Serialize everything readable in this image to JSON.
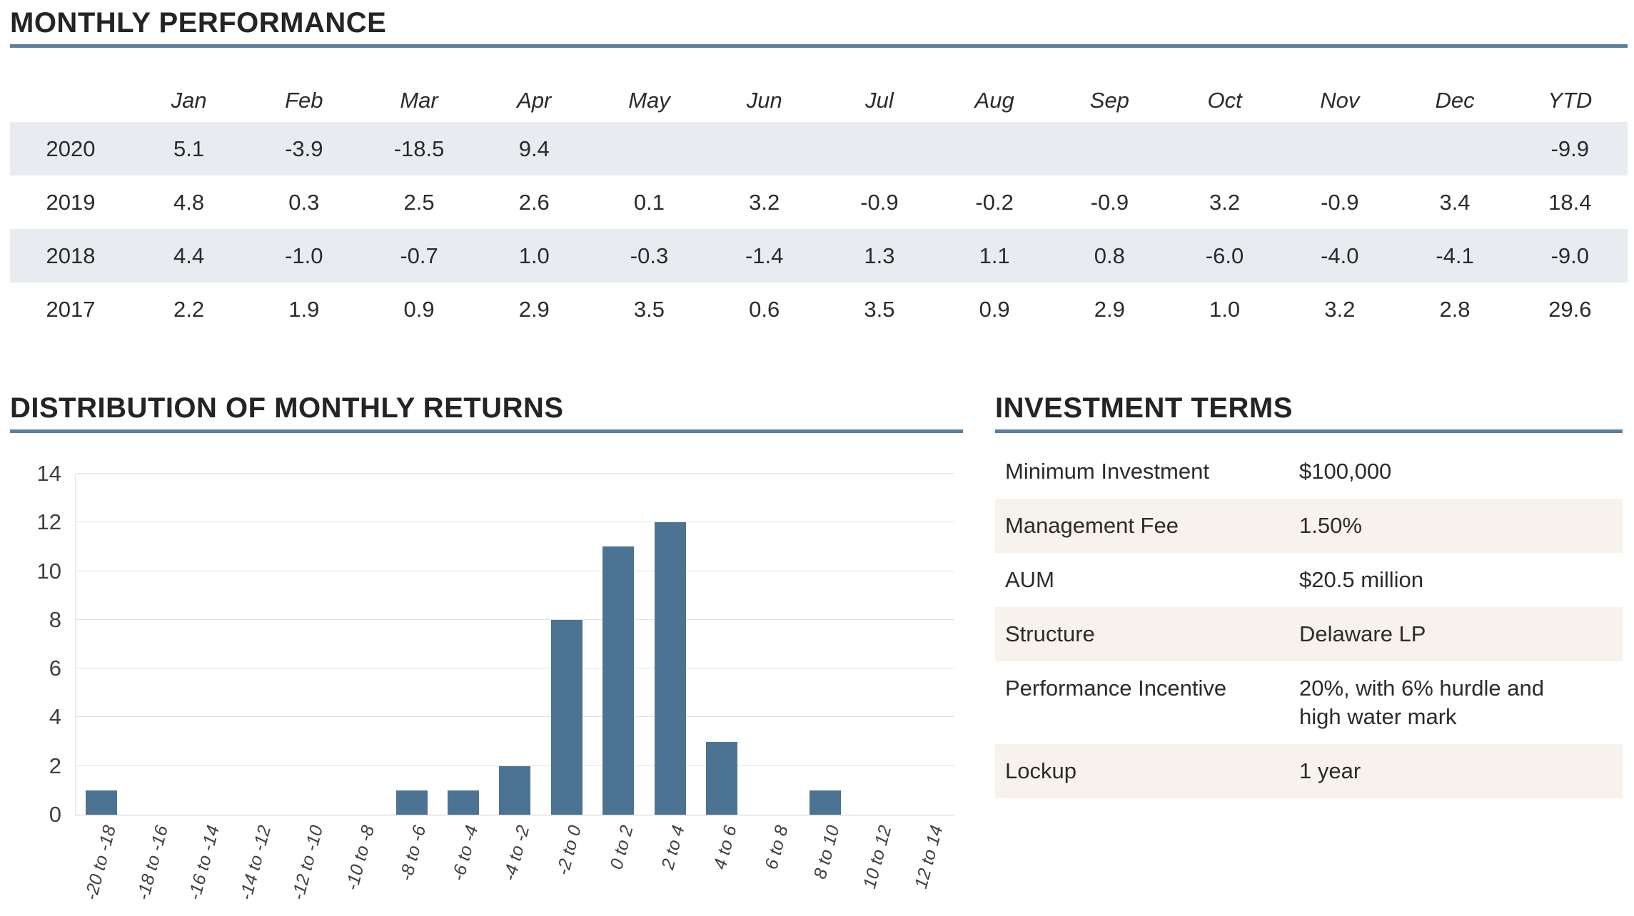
{
  "monthly": {
    "title": "MONTHLY PERFORMANCE",
    "columns": [
      "Jan",
      "Feb",
      "Mar",
      "Apr",
      "May",
      "Jun",
      "Jul",
      "Aug",
      "Sep",
      "Oct",
      "Nov",
      "Dec",
      "YTD"
    ],
    "rows": [
      {
        "year": "2020",
        "values": [
          "5.1",
          "-3.9",
          "-18.5",
          "9.4",
          "",
          "",
          "",
          "",
          "",
          "",
          "",
          "",
          "-9.9"
        ]
      },
      {
        "year": "2019",
        "values": [
          "4.8",
          "0.3",
          "2.5",
          "2.6",
          "0.1",
          "3.2",
          "-0.9",
          "-0.2",
          "-0.9",
          "3.2",
          "-0.9",
          "3.4",
          "18.4"
        ]
      },
      {
        "year": "2018",
        "values": [
          "4.4",
          "-1.0",
          "-0.7",
          "1.0",
          "-0.3",
          "-1.4",
          "1.3",
          "1.1",
          "0.8",
          "-6.0",
          "-4.0",
          "-4.1",
          "-9.0"
        ]
      },
      {
        "year": "2017",
        "values": [
          "2.2",
          "1.9",
          "0.9",
          "2.9",
          "3.5",
          "0.6",
          "3.5",
          "0.9",
          "2.9",
          "1.0",
          "3.2",
          "2.8",
          "29.6"
        ]
      }
    ]
  },
  "distribution": {
    "title": "DISTRIBUTION OF MONTHLY RETURNS"
  },
  "chart_data": {
    "type": "bar",
    "title": "DISTRIBUTION OF MONTHLY RETURNS",
    "categories": [
      "-20 to -18",
      "-18 to -16",
      "-16 to -14",
      "-14 to -12",
      "-12 to -10",
      "-10 to -8",
      "-8 to -6",
      "-6 to -4",
      "-4 to -2",
      "-2 to 0",
      "0 to 2",
      "2 to 4",
      "4 to 6",
      "6 to 8",
      "8 to 10",
      "10 to 12",
      "12 to 14"
    ],
    "values": [
      1,
      0,
      0,
      0,
      0,
      0,
      1,
      1,
      2,
      8,
      11,
      12,
      3,
      0,
      1,
      0,
      0
    ],
    "xlabel": "",
    "ylabel": "",
    "ylim": [
      0,
      14
    ],
    "ytick_step": 2,
    "grid": true,
    "legend": false,
    "bar_color": "#4c7392"
  },
  "terms": {
    "title": "INVESTMENT TERMS",
    "rows": [
      {
        "label": "Minimum Investment",
        "value": "$100,000"
      },
      {
        "label": "Management Fee",
        "value": "1.50%"
      },
      {
        "label": "AUM",
        "value": "$20.5 million"
      },
      {
        "label": "Structure",
        "value": "Delaware LP"
      },
      {
        "label": "Performance Incentive",
        "value": "20%, with 6% hurdle and high water mark"
      },
      {
        "label": "Lockup",
        "value": "1 year"
      }
    ]
  },
  "colors": {
    "accent_rule": "#5b7f9e",
    "bar": "#4c7392",
    "monthly_stripe": "#e8ecf0",
    "terms_stripe": "#f7f2eb"
  }
}
